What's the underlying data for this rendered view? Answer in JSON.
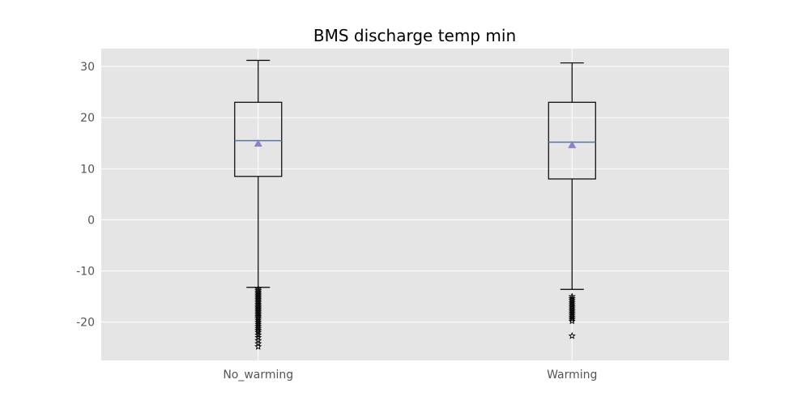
{
  "chart_data": {
    "type": "box",
    "title": "BMS discharge temp min",
    "xlabel": "",
    "ylabel": "",
    "categories": [
      "No_warming",
      "Warming"
    ],
    "ylim": [
      -27.5,
      33.5
    ],
    "yticks": [
      -20,
      -10,
      0,
      10,
      20,
      30
    ],
    "grid": true,
    "legend": "none",
    "boxes": [
      {
        "category": "No_warming",
        "whisker_low": -13.2,
        "q1": 8.5,
        "median": 15.5,
        "mean": 15.0,
        "q3": 23.0,
        "whisker_high": 31.2,
        "outliers": [
          -13.5,
          -13.8,
          -14.1,
          -14.4,
          -14.7,
          -15.0,
          -15.3,
          -15.6,
          -15.9,
          -16.2,
          -16.5,
          -16.8,
          -17.1,
          -17.4,
          -17.7,
          -18.0,
          -18.3,
          -18.6,
          -18.9,
          -19.2,
          -19.6,
          -20.0,
          -20.4,
          -20.8,
          -21.2,
          -21.6,
          -22.0,
          -22.5,
          -23.0,
          -23.6,
          -24.2,
          -24.8
        ]
      },
      {
        "category": "Warming",
        "whisker_low": -13.6,
        "q1": 8.0,
        "median": 15.2,
        "mean": 14.7,
        "q3": 23.0,
        "whisker_high": 30.7,
        "outliers": [
          -15.0,
          -15.4,
          -15.8,
          -16.2,
          -16.6,
          -17.0,
          -17.4,
          -17.8,
          -18.2,
          -18.6,
          -19.0,
          -19.4,
          -19.8,
          -22.7
        ]
      }
    ],
    "colors": {
      "plot_background": "#e5e5e5",
      "grid": "#ffffff",
      "box": "#000000",
      "median": "#4a7ab8",
      "mean_marker": "#8d84c7",
      "tick_text": "#555555"
    }
  }
}
